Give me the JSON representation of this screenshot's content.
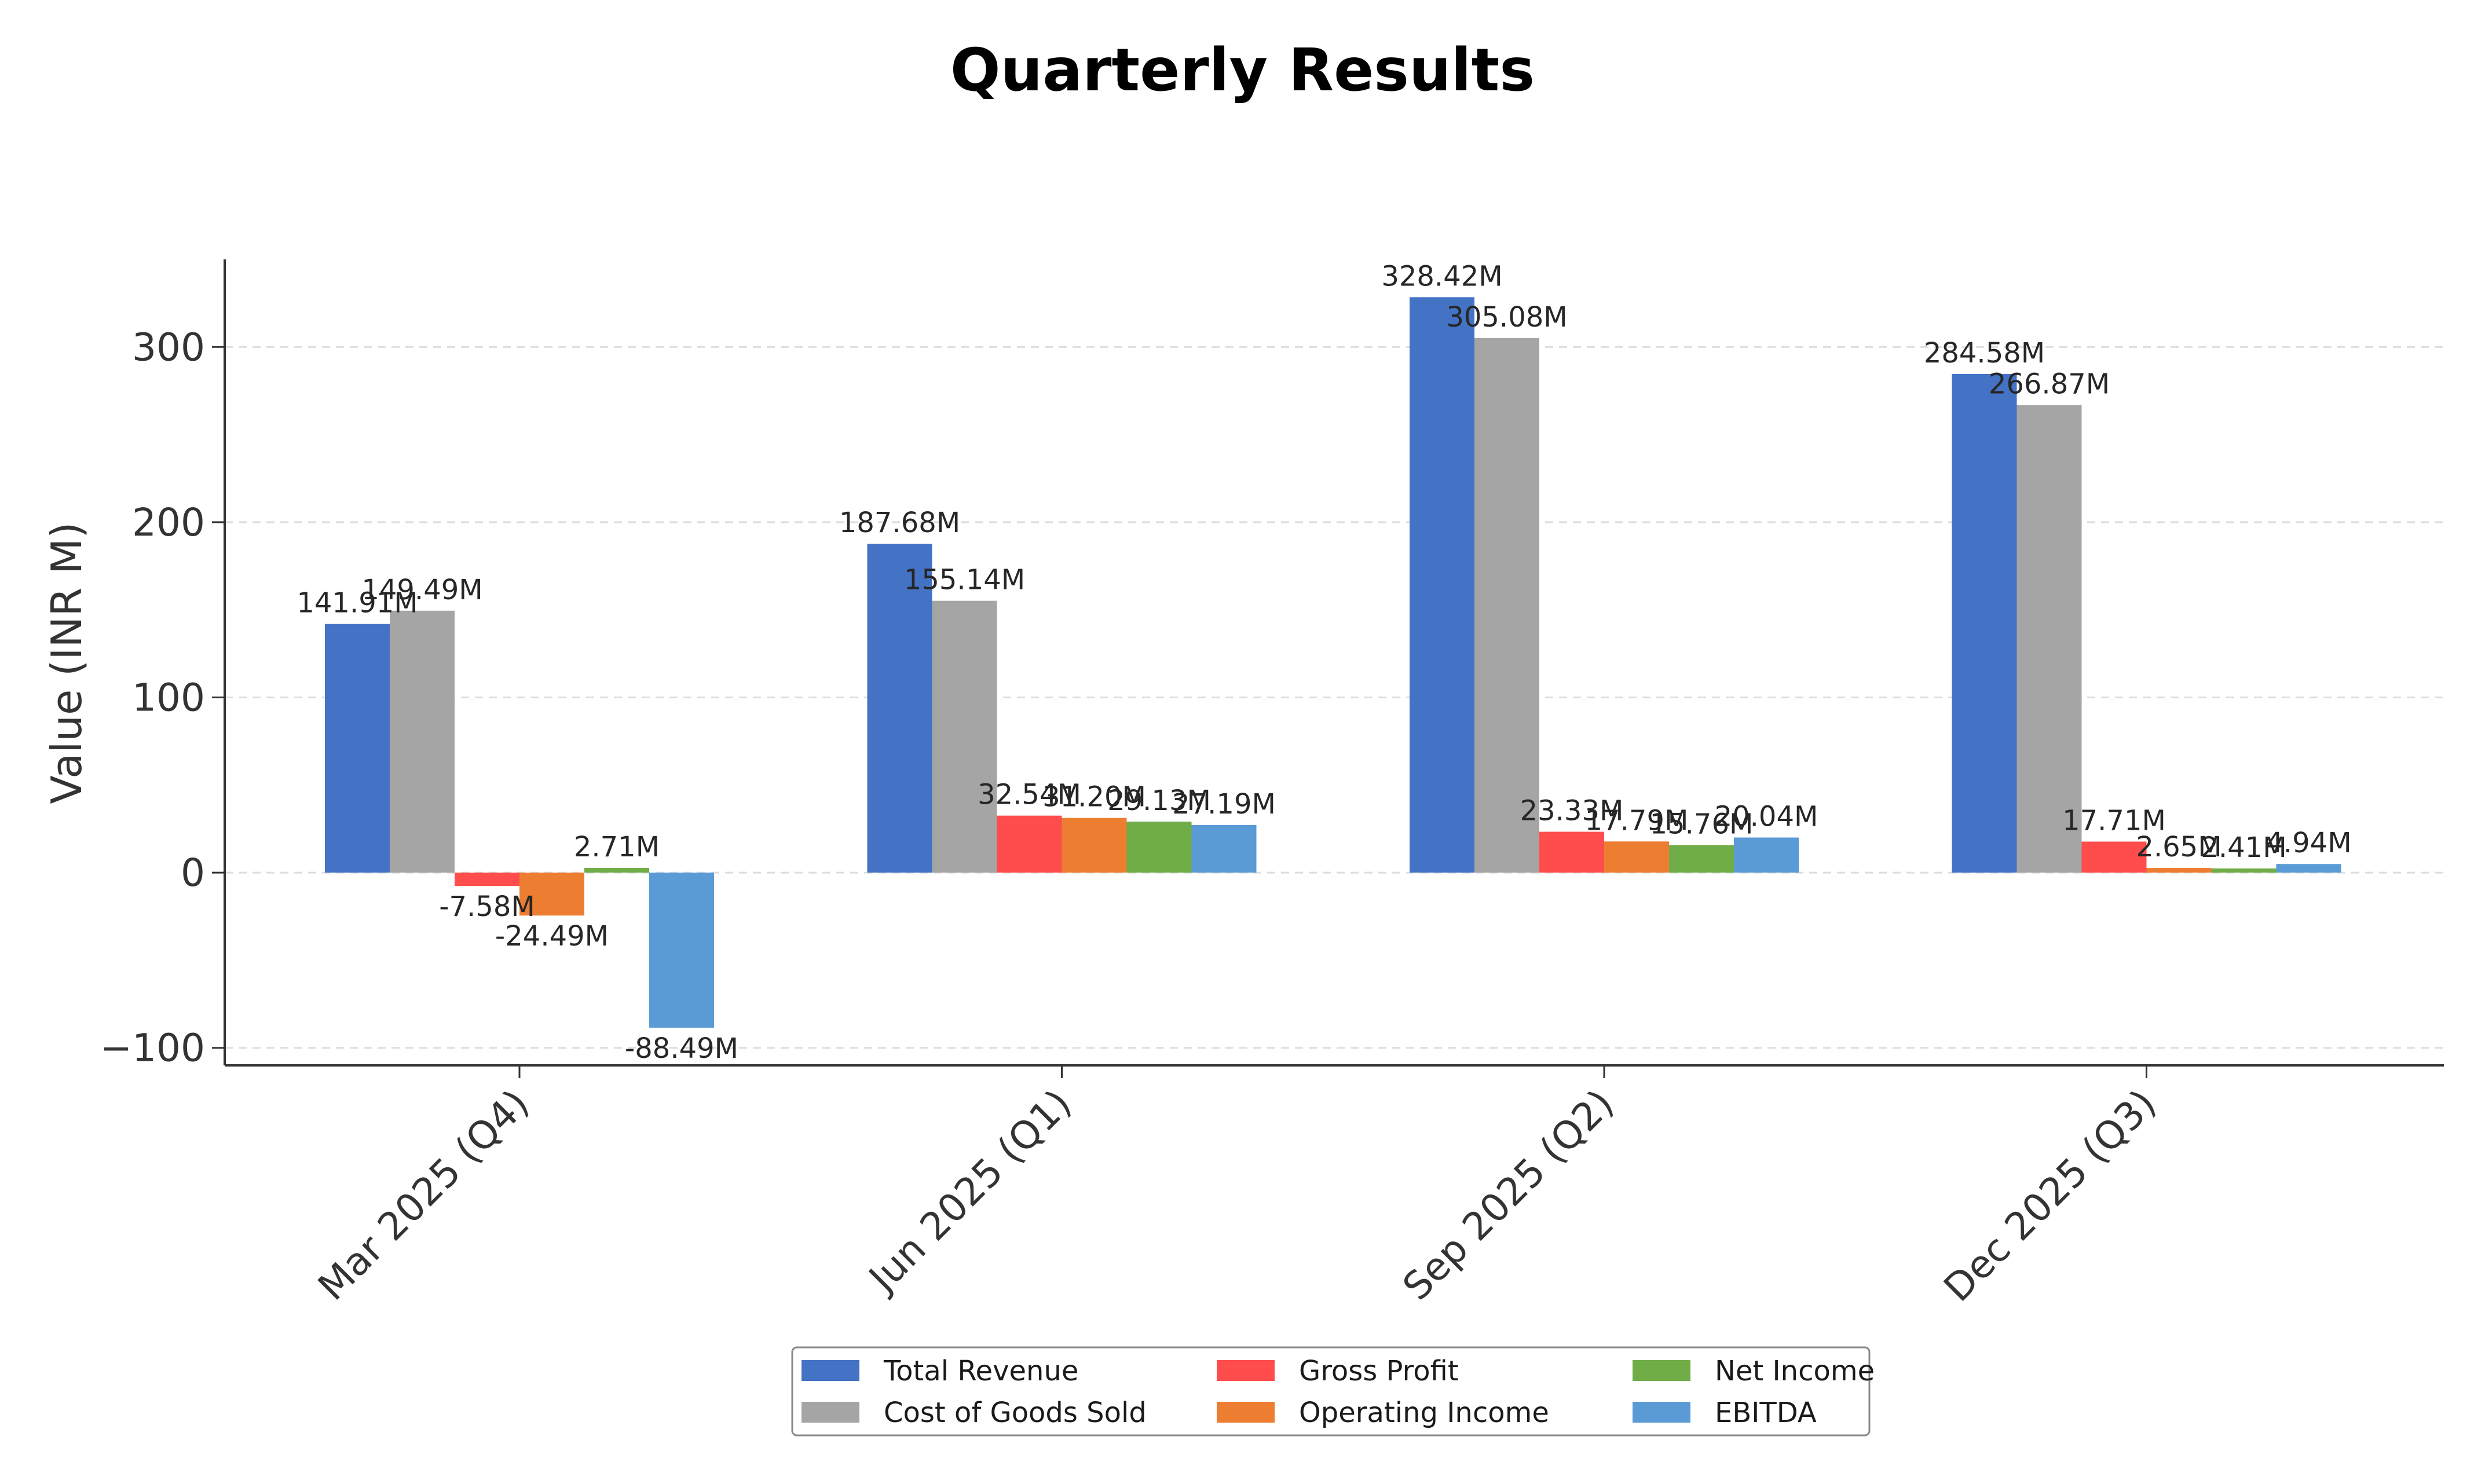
{
  "chart_data": {
    "type": "bar",
    "title": "Quarterly Results",
    "xlabel": "",
    "ylabel": "Value (INR M)",
    "ylim": [
      -110,
      350
    ],
    "yticks": [
      -100,
      0,
      100,
      200,
      300
    ],
    "ytick_labels": [
      "−100",
      "0",
      "100",
      "200",
      "300"
    ],
    "grid": true,
    "legend_position": "bottom-center",
    "categories": [
      "Mar 2025 (Q4)",
      "Jun 2025 (Q1)",
      "Sep 2025 (Q2)",
      "Dec 2025 (Q3)"
    ],
    "series": [
      {
        "name": "Total Revenue",
        "color": "#4472C4",
        "values": [
          141.91,
          187.68,
          328.42,
          284.58
        ],
        "labels": [
          "141.91M",
          "187.68M",
          "328.42M",
          "284.58M"
        ]
      },
      {
        "name": "Cost of Goods Sold",
        "color": "#A5A5A5",
        "values": [
          149.49,
          155.14,
          305.08,
          266.87
        ],
        "labels": [
          "149.49M",
          "155.14M",
          "305.08M",
          "266.87M"
        ]
      },
      {
        "name": "Gross Profit",
        "color": "#FF4C4C",
        "values": [
          -7.58,
          32.54,
          23.33,
          17.71
        ],
        "labels": [
          "-7.58M",
          "32.54M",
          "23.33M",
          "17.71M"
        ]
      },
      {
        "name": "Operating Income",
        "color": "#ED7D31",
        "values": [
          -24.49,
          31.2,
          17.79,
          2.65
        ],
        "labels": [
          "-24.49M",
          "31.20M",
          "17.79M",
          "2.65M"
        ]
      },
      {
        "name": "Net Income",
        "color": "#70AD47",
        "values": [
          2.71,
          29.13,
          15.76,
          2.41
        ],
        "labels": [
          "2.71M",
          "29.13M",
          "15.76M",
          "2.41M"
        ]
      },
      {
        "name": "EBITDA",
        "color": "#5B9BD5",
        "values": [
          -88.49,
          27.19,
          20.04,
          4.94
        ],
        "labels": [
          "-88.49M",
          "27.19M",
          "20.04M",
          "4.94M"
        ]
      }
    ]
  }
}
